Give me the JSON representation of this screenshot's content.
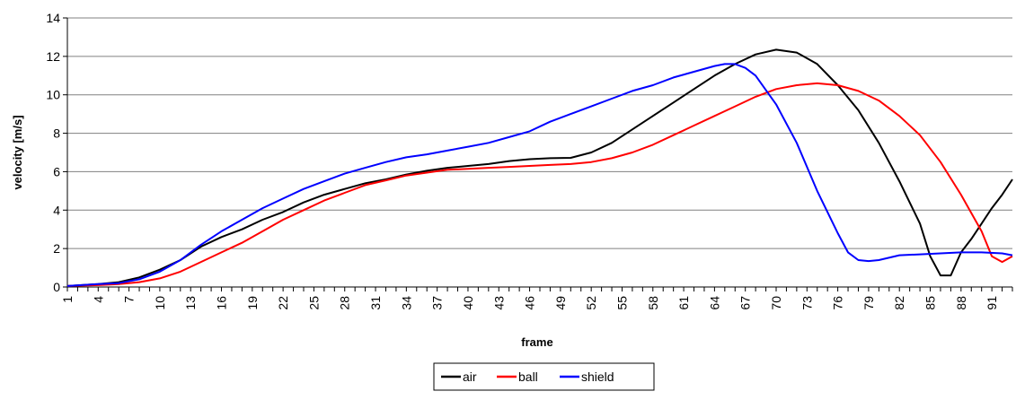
{
  "chart_data": {
    "type": "line",
    "title": "",
    "xlabel": "frame",
    "ylabel": "velocity [m/s]",
    "ylim": [
      0,
      14
    ],
    "yticks": [
      0,
      2,
      4,
      6,
      8,
      10,
      12,
      14
    ],
    "xlim": [
      1,
      93
    ],
    "xticks": [
      1,
      4,
      7,
      10,
      13,
      16,
      19,
      22,
      25,
      28,
      31,
      34,
      37,
      40,
      43,
      46,
      49,
      52,
      55,
      58,
      61,
      64,
      67,
      70,
      73,
      76,
      79,
      82,
      85,
      88,
      91
    ],
    "grid": "horizontal",
    "legend_position": "bottom",
    "series": [
      {
        "name": "air",
        "color": "#000000",
        "points": [
          [
            1,
            0.05
          ],
          [
            4,
            0.15
          ],
          [
            6,
            0.25
          ],
          [
            8,
            0.5
          ],
          [
            10,
            0.9
          ],
          [
            12,
            1.4
          ],
          [
            14,
            2.1
          ],
          [
            16,
            2.6
          ],
          [
            18,
            3.0
          ],
          [
            20,
            3.5
          ],
          [
            22,
            3.9
          ],
          [
            24,
            4.4
          ],
          [
            26,
            4.8
          ],
          [
            28,
            5.1
          ],
          [
            30,
            5.4
          ],
          [
            32,
            5.6
          ],
          [
            34,
            5.85
          ],
          [
            36,
            6.05
          ],
          [
            38,
            6.2
          ],
          [
            40,
            6.3
          ],
          [
            42,
            6.4
          ],
          [
            44,
            6.55
          ],
          [
            46,
            6.65
          ],
          [
            48,
            6.7
          ],
          [
            50,
            6.72
          ],
          [
            52,
            7.0
          ],
          [
            54,
            7.5
          ],
          [
            56,
            8.2
          ],
          [
            58,
            8.9
          ],
          [
            60,
            9.6
          ],
          [
            62,
            10.3
          ],
          [
            64,
            11.0
          ],
          [
            66,
            11.6
          ],
          [
            68,
            12.1
          ],
          [
            70,
            12.35
          ],
          [
            72,
            12.2
          ],
          [
            74,
            11.6
          ],
          [
            76,
            10.5
          ],
          [
            78,
            9.2
          ],
          [
            80,
            7.5
          ],
          [
            82,
            5.5
          ],
          [
            84,
            3.3
          ],
          [
            85,
            1.6
          ],
          [
            86,
            0.6
          ],
          [
            87,
            0.6
          ],
          [
            88,
            1.8
          ],
          [
            89,
            2.5
          ],
          [
            90,
            3.3
          ],
          [
            91,
            4.1
          ],
          [
            92,
            4.8
          ],
          [
            93,
            5.6
          ]
        ]
      },
      {
        "name": "ball",
        "color": "#ff0000",
        "points": [
          [
            1,
            0.05
          ],
          [
            4,
            0.1
          ],
          [
            6,
            0.15
          ],
          [
            8,
            0.25
          ],
          [
            10,
            0.45
          ],
          [
            12,
            0.8
          ],
          [
            14,
            1.3
          ],
          [
            16,
            1.8
          ],
          [
            18,
            2.3
          ],
          [
            20,
            2.9
          ],
          [
            22,
            3.5
          ],
          [
            24,
            4.0
          ],
          [
            26,
            4.5
          ],
          [
            28,
            4.9
          ],
          [
            30,
            5.3
          ],
          [
            32,
            5.55
          ],
          [
            34,
            5.8
          ],
          [
            36,
            5.95
          ],
          [
            38,
            6.1
          ],
          [
            40,
            6.15
          ],
          [
            42,
            6.2
          ],
          [
            44,
            6.25
          ],
          [
            46,
            6.3
          ],
          [
            48,
            6.35
          ],
          [
            50,
            6.4
          ],
          [
            52,
            6.5
          ],
          [
            54,
            6.7
          ],
          [
            56,
            7.0
          ],
          [
            58,
            7.4
          ],
          [
            60,
            7.9
          ],
          [
            62,
            8.4
          ],
          [
            64,
            8.9
          ],
          [
            66,
            9.4
          ],
          [
            68,
            9.9
          ],
          [
            70,
            10.3
          ],
          [
            72,
            10.5
          ],
          [
            74,
            10.6
          ],
          [
            76,
            10.5
          ],
          [
            78,
            10.2
          ],
          [
            80,
            9.7
          ],
          [
            82,
            8.9
          ],
          [
            84,
            7.9
          ],
          [
            86,
            6.5
          ],
          [
            88,
            4.8
          ],
          [
            90,
            2.9
          ],
          [
            91,
            1.6
          ],
          [
            92,
            1.3
          ],
          [
            93,
            1.6
          ]
        ]
      },
      {
        "name": "shield",
        "color": "#0000ff",
        "points": [
          [
            1,
            0.05
          ],
          [
            4,
            0.15
          ],
          [
            6,
            0.2
          ],
          [
            8,
            0.4
          ],
          [
            10,
            0.8
          ],
          [
            12,
            1.4
          ],
          [
            14,
            2.2
          ],
          [
            16,
            2.9
          ],
          [
            18,
            3.5
          ],
          [
            20,
            4.1
          ],
          [
            22,
            4.6
          ],
          [
            24,
            5.1
          ],
          [
            26,
            5.5
          ],
          [
            28,
            5.9
          ],
          [
            30,
            6.2
          ],
          [
            32,
            6.5
          ],
          [
            34,
            6.75
          ],
          [
            36,
            6.9
          ],
          [
            38,
            7.1
          ],
          [
            40,
            7.3
          ],
          [
            42,
            7.5
          ],
          [
            44,
            7.8
          ],
          [
            46,
            8.1
          ],
          [
            48,
            8.6
          ],
          [
            50,
            9.0
          ],
          [
            52,
            9.4
          ],
          [
            54,
            9.8
          ],
          [
            56,
            10.2
          ],
          [
            58,
            10.5
          ],
          [
            60,
            10.9
          ],
          [
            62,
            11.2
          ],
          [
            64,
            11.5
          ],
          [
            65,
            11.6
          ],
          [
            66,
            11.6
          ],
          [
            67,
            11.4
          ],
          [
            68,
            11.0
          ],
          [
            70,
            9.5
          ],
          [
            72,
            7.5
          ],
          [
            74,
            5.0
          ],
          [
            76,
            2.8
          ],
          [
            77,
            1.8
          ],
          [
            78,
            1.4
          ],
          [
            79,
            1.35
          ],
          [
            80,
            1.4
          ],
          [
            82,
            1.65
          ],
          [
            84,
            1.7
          ],
          [
            86,
            1.75
          ],
          [
            88,
            1.8
          ],
          [
            90,
            1.8
          ],
          [
            92,
            1.75
          ],
          [
            93,
            1.65
          ]
        ]
      }
    ]
  }
}
